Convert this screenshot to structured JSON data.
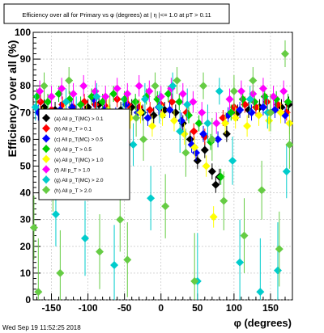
{
  "chart_data": {
    "type": "scatter",
    "title": "Efficiency over all for Primary vs φ (degrees) at | η |<= 1.0 at pT > 0.11",
    "xlabel": "φ (degrees)",
    "ylabel": "Efficiency over all (%)",
    "xlim": [
      -175,
      180
    ],
    "ylim": [
      0,
      100
    ],
    "x_ticks": [
      -150,
      -100,
      -50,
      0,
      50,
      100,
      150
    ],
    "y_ticks": [
      0,
      10,
      20,
      30,
      40,
      50,
      60,
      70,
      80,
      90,
      100
    ],
    "grid": true,
    "legend_position": "left-middle",
    "series": [
      {
        "name": "(a) All p_T(MC) > 0.1",
        "color": "#000000",
        "marker": "diamond",
        "points": [
          [
            -160,
            72,
            3
          ],
          [
            -145,
            71,
            3
          ],
          [
            -130,
            70,
            3
          ],
          [
            -115,
            68,
            3
          ],
          [
            -100,
            72,
            3
          ],
          [
            -85,
            73,
            3
          ],
          [
            -70,
            70,
            3
          ],
          [
            -55,
            71,
            3
          ],
          [
            -40,
            72,
            3
          ],
          [
            -25,
            70,
            3
          ],
          [
            -10,
            69,
            3
          ],
          [
            5,
            71,
            3
          ],
          [
            20,
            70,
            3
          ],
          [
            30,
            66,
            3
          ],
          [
            40,
            60,
            3
          ],
          [
            50,
            52,
            3
          ],
          [
            60,
            56,
            3
          ],
          [
            70,
            48,
            3
          ],
          [
            75,
            43,
            3
          ],
          [
            80,
            46,
            3
          ],
          [
            90,
            62,
            3
          ],
          [
            105,
            70,
            3
          ],
          [
            120,
            71,
            3
          ],
          [
            135,
            72,
            3
          ],
          [
            150,
            70,
            3
          ],
          [
            165,
            72,
            3
          ],
          [
            175,
            73,
            3
          ]
        ]
      },
      {
        "name": "(b) All p_T > 0.1",
        "color": "#ff0000",
        "marker": "diamond",
        "points": [
          [
            -165,
            74,
            3
          ],
          [
            -150,
            71,
            3
          ],
          [
            -135,
            73,
            3
          ],
          [
            -120,
            72,
            3
          ],
          [
            -105,
            74,
            3
          ],
          [
            -90,
            73,
            3
          ],
          [
            -75,
            72,
            3
          ],
          [
            -60,
            75,
            3
          ],
          [
            -45,
            73,
            3
          ],
          [
            -30,
            72,
            3
          ],
          [
            -15,
            71,
            3
          ],
          [
            0,
            73,
            3
          ],
          [
            15,
            74,
            3
          ],
          [
            35,
            70,
            3
          ],
          [
            45,
            63,
            3
          ],
          [
            60,
            61,
            3
          ],
          [
            85,
            68,
            3
          ],
          [
            100,
            72,
            3
          ],
          [
            115,
            73,
            3
          ],
          [
            130,
            72,
            3
          ],
          [
            145,
            74,
            3
          ],
          [
            160,
            73,
            3
          ],
          [
            172,
            70,
            3
          ]
        ]
      },
      {
        "name": "(c) All p_T(MC) > 0.5",
        "color": "#0000ff",
        "marker": "diamond",
        "points": [
          [
            -168,
            70,
            3
          ],
          [
            -152,
            68,
            3
          ],
          [
            -138,
            71,
            3
          ],
          [
            -122,
            72,
            3
          ],
          [
            -108,
            70,
            3
          ],
          [
            -92,
            75,
            3
          ],
          [
            -78,
            71,
            3
          ],
          [
            -62,
            69,
            3
          ],
          [
            -48,
            73,
            3
          ],
          [
            -32,
            70,
            3
          ],
          [
            -18,
            68,
            3
          ],
          [
            -3,
            72,
            3
          ],
          [
            12,
            71,
            3
          ],
          [
            28,
            67,
            3
          ],
          [
            42,
            58,
            3
          ],
          [
            48,
            55,
            3
          ],
          [
            58,
            62,
            3
          ],
          [
            78,
            60,
            3
          ],
          [
            92,
            69,
            3
          ],
          [
            108,
            71,
            3
          ],
          [
            124,
            70,
            3
          ],
          [
            140,
            72,
            3
          ],
          [
            156,
            71,
            3
          ],
          [
            170,
            69,
            3
          ]
        ]
      },
      {
        "name": "(d) All p_T > 0.5",
        "color": "#00cc00",
        "marker": "diamond",
        "points": [
          [
            -170,
            76,
            3
          ],
          [
            -155,
            74,
            3
          ],
          [
            -140,
            77,
            3
          ],
          [
            -125,
            75,
            3
          ],
          [
            -110,
            73,
            3
          ],
          [
            -95,
            76,
            3
          ],
          [
            -80,
            74,
            3
          ],
          [
            -65,
            77,
            3
          ],
          [
            -50,
            75,
            3
          ],
          [
            -35,
            74,
            3
          ],
          [
            -20,
            76,
            3
          ],
          [
            -5,
            75,
            3
          ],
          [
            10,
            77,
            3
          ],
          [
            25,
            74,
            3
          ],
          [
            38,
            69,
            3
          ],
          [
            52,
            66,
            3
          ],
          [
            68,
            59,
            3
          ],
          [
            82,
            46,
            3
          ],
          [
            96,
            70,
            3
          ],
          [
            112,
            75,
            3
          ],
          [
            128,
            74,
            3
          ],
          [
            142,
            76,
            3
          ],
          [
            158,
            75,
            3
          ],
          [
            174,
            74,
            3
          ]
        ]
      },
      {
        "name": "(e) All p_T(MC) > 1.0",
        "color": "#ffff00",
        "marker": "diamond",
        "points": [
          [
            -162,
            68,
            4
          ],
          [
            -146,
            66,
            4
          ],
          [
            -132,
            70,
            4
          ],
          [
            -118,
            64,
            4
          ],
          [
            -102,
            69,
            4
          ],
          [
            -88,
            67,
            4
          ],
          [
            -72,
            71,
            4
          ],
          [
            -58,
            66,
            4
          ],
          [
            -42,
            68,
            4
          ],
          [
            -28,
            70,
            4
          ],
          [
            -12,
            65,
            4
          ],
          [
            2,
            69,
            4
          ],
          [
            18,
            67,
            4
          ],
          [
            32,
            62,
            4
          ],
          [
            46,
            57,
            4
          ],
          [
            62,
            50,
            4
          ],
          [
            72,
            31,
            4
          ],
          [
            88,
            66,
            4
          ],
          [
            102,
            68,
            4
          ],
          [
            118,
            65,
            4
          ],
          [
            134,
            69,
            4
          ],
          [
            148,
            67,
            4
          ],
          [
            164,
            70,
            4
          ],
          [
            176,
            66,
            4
          ]
        ]
      },
      {
        "name": "(f) All p_T > 1.0",
        "color": "#ff00ff",
        "marker": "diamond",
        "points": [
          [
            -166,
            78,
            4
          ],
          [
            -150,
            76,
            4
          ],
          [
            -136,
            79,
            4
          ],
          [
            -120,
            77,
            4
          ],
          [
            -106,
            80,
            4
          ],
          [
            -90,
            78,
            4
          ],
          [
            -76,
            76,
            4
          ],
          [
            -60,
            79,
            4
          ],
          [
            -46,
            77,
            4
          ],
          [
            -30,
            80,
            4
          ],
          [
            -16,
            78,
            4
          ],
          [
            0,
            76,
            4
          ],
          [
            14,
            79,
            4
          ],
          [
            30,
            77,
            4
          ],
          [
            44,
            74,
            4
          ],
          [
            56,
            70,
            4
          ],
          [
            76,
            66,
            4
          ],
          [
            94,
            75,
            4
          ],
          [
            110,
            78,
            4
          ],
          [
            126,
            77,
            4
          ],
          [
            140,
            79,
            4
          ],
          [
            154,
            76,
            4
          ],
          [
            168,
            78,
            4
          ]
        ]
      },
      {
        "name": "(g) All p_T(MC) > 2.0",
        "color": "#00cccc",
        "marker": "diamond",
        "points": [
          [
            -172,
            72,
            5
          ],
          [
            -158,
            50,
            10
          ],
          [
            -144,
            32,
            12
          ],
          [
            -130,
            74,
            5
          ],
          [
            -116,
            70,
            6
          ],
          [
            -104,
            23,
            14
          ],
          [
            -88,
            76,
            5
          ],
          [
            -74,
            65,
            7
          ],
          [
            -64,
            13,
            15
          ],
          [
            -52,
            70,
            6
          ],
          [
            -38,
            58,
            8
          ],
          [
            -22,
            75,
            6
          ],
          [
            -14,
            38,
            12
          ],
          [
            -2,
            72,
            6
          ],
          [
            16,
            80,
            5
          ],
          [
            26,
            63,
            8
          ],
          [
            36,
            73,
            6
          ],
          [
            50,
            7,
            18
          ],
          [
            64,
            66,
            7
          ],
          [
            80,
            78,
            5
          ],
          [
            98,
            52,
            9
          ],
          [
            108,
            14,
            16
          ],
          [
            122,
            75,
            5
          ],
          [
            136,
            3,
            20
          ],
          [
            146,
            70,
            6
          ],
          [
            160,
            11,
            18
          ],
          [
            172,
            48,
            10
          ]
        ]
      },
      {
        "name": "(h) All p_T > 2.0",
        "color": "#66cc44",
        "marker": "diamond",
        "points": [
          [
            -174,
            27,
            12
          ],
          [
            -168,
            3,
            20
          ],
          [
            -160,
            80,
            5
          ],
          [
            -148,
            45,
            12
          ],
          [
            -138,
            10,
            16
          ],
          [
            -126,
            82,
            5
          ],
          [
            -112,
            53,
            10
          ],
          [
            -98,
            61,
            8
          ],
          [
            -84,
            18,
            14
          ],
          [
            -70,
            70,
            7
          ],
          [
            -56,
            30,
            12
          ],
          [
            -46,
            15,
            14
          ],
          [
            -34,
            68,
            7
          ],
          [
            -24,
            60,
            8
          ],
          [
            -8,
            80,
            5
          ],
          [
            6,
            35,
            12
          ],
          [
            22,
            82,
            5
          ],
          [
            34,
            55,
            9
          ],
          [
            46,
            7,
            18
          ],
          [
            58,
            80,
            5
          ],
          [
            70,
            60,
            8
          ],
          [
            86,
            37,
            11
          ],
          [
            100,
            78,
            6
          ],
          [
            114,
            24,
            14
          ],
          [
            126,
            82,
            5
          ],
          [
            138,
            41,
            11
          ],
          [
            150,
            70,
            7
          ],
          [
            162,
            19,
            14
          ],
          [
            170,
            92,
            5
          ],
          [
            176,
            58,
            9
          ]
        ]
      }
    ]
  },
  "legend": {
    "entries": [
      "(a) All p_T(MC) > 0.1",
      "(b) All p_T > 0.1",
      "(c) All p_T(MC) > 0.5",
      "(d) All p_T > 0.5",
      "(e) All p_T(MC) > 1.0",
      "(f) All p_T > 1.0",
      "(g) All p_T(MC) > 2.0",
      "(h) All p_T > 2.0"
    ]
  },
  "footer": {
    "timestamp": "Wed Sep 19 11:52:25 2018"
  }
}
